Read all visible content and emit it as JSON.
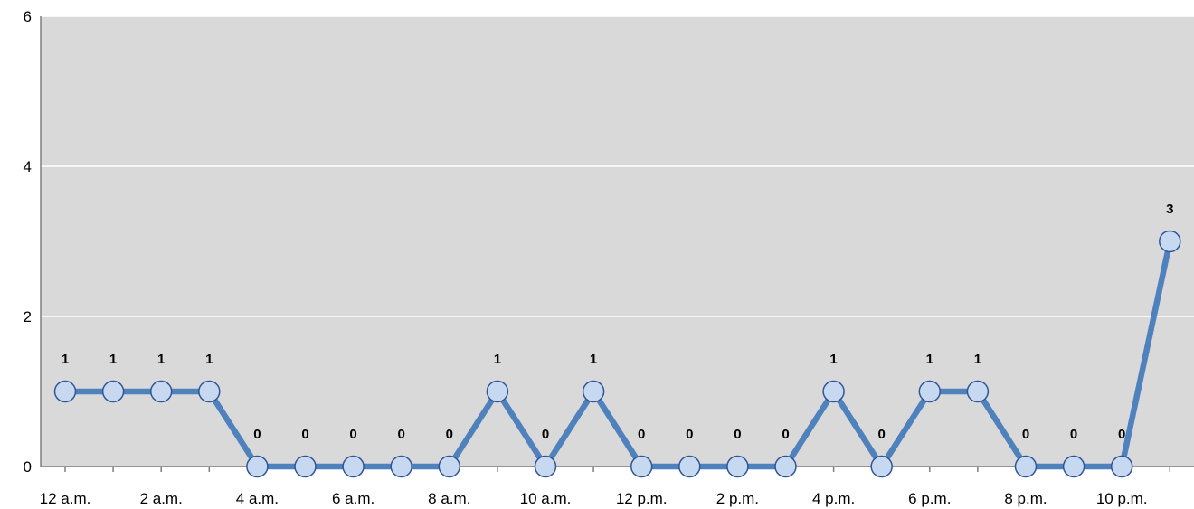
{
  "chart_data": {
    "type": "line",
    "x": [
      "12 a.m.",
      "1 a.m.",
      "2 a.m.",
      "3 a.m.",
      "4 a.m.",
      "5 a.m.",
      "6 a.m.",
      "7 a.m.",
      "8 a.m.",
      "9 a.m.",
      "10 a.m.",
      "11 a.m.",
      "12 p.m.",
      "1 p.m.",
      "2 p.m.",
      "3 p.m.",
      "4 p.m.",
      "5 p.m.",
      "6 p.m.",
      "7 p.m.",
      "8 p.m.",
      "9 p.m.",
      "10 p.m.",
      "11 p.m."
    ],
    "x_tick_labels": [
      "12 a.m.",
      "2 a.m.",
      "4 a.m.",
      "6 a.m.",
      "8 a.m.",
      "10 a.m.",
      "12 p.m.",
      "2 p.m.",
      "4 p.m.",
      "6 p.m.",
      "8 p.m.",
      "10 p.m."
    ],
    "series": [
      {
        "values": [
          1,
          1,
          1,
          1,
          0,
          0,
          0,
          0,
          0,
          1,
          0,
          1,
          0,
          0,
          0,
          0,
          1,
          0,
          1,
          1,
          0,
          0,
          0,
          3
        ]
      }
    ],
    "data_labels": [
      "1",
      "1",
      "1",
      "1",
      "0",
      "0",
      "0",
      "0",
      "0",
      "1",
      "0",
      "1",
      "0",
      "0",
      "0",
      "0",
      "1",
      "0",
      "1",
      "1",
      "0",
      "0",
      "0",
      "3"
    ],
    "y_tick_labels": [
      "0",
      "2",
      "4",
      "6"
    ],
    "ylim": [
      0,
      6
    ],
    "grid": true,
    "legend": "none",
    "title": "",
    "xlabel": "",
    "ylabel": "",
    "colors": {
      "plot_background": "#d9d9d9",
      "gridline": "#ffffff",
      "axis": "#7f7f7f",
      "line": "#4f81bd",
      "marker_fill": "#c6d9f1",
      "marker_stroke": "#2f5597"
    }
  }
}
